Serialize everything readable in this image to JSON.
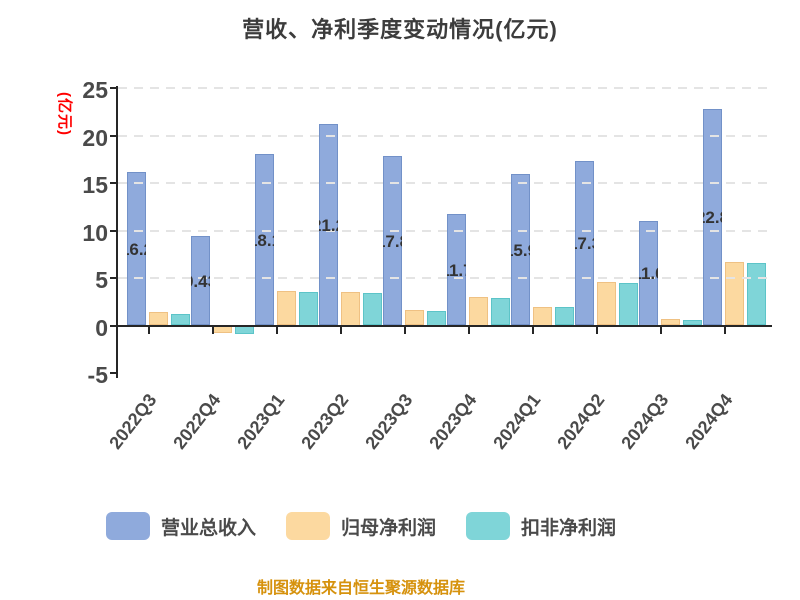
{
  "title": "营收、净利季度变动情况(亿元)",
  "footer": {
    "source_text": "制图数据来自恒生聚源数据库"
  },
  "colors": {
    "revenue_bar": "#8FAADC",
    "revenue_bar_border": "#7291C8",
    "net_profit_bar": "#FCD9A0",
    "net_profit_bar_border": "#EFC183",
    "non_recurring_bar": "#7FD5D8",
    "non_recurring_bar_border": "#5CC4C8",
    "axis": "#262626",
    "gridline": "#E4E4E4",
    "tick_text": "#4A4A4A",
    "title_text": "#3C3C3C",
    "unit_label_text": "#FF0000",
    "bar_label_text": "#333333",
    "footer_text": "#D6920D"
  },
  "chart_data": {
    "type": "bar",
    "title": "营收、净利季度变动情况(亿元)",
    "categories": [
      "2022Q3",
      "2022Q4",
      "2023Q1",
      "2023Q2",
      "2023Q3",
      "2023Q4",
      "2024Q1",
      "2024Q2",
      "2024Q3",
      "2024Q4"
    ],
    "series": [
      {
        "name": "营业总收入",
        "color": "#8FAADC",
        "values": [
          16.2,
          9.43,
          18.1,
          21.2,
          17.8,
          11.7,
          15.9,
          17.3,
          11.0,
          22.8
        ],
        "labels": [
          "16.2",
          "9.43",
          "18.1",
          "21.2",
          "17.8",
          "11.7",
          "15.9",
          "17.3",
          "11.0",
          "22.8"
        ]
      },
      {
        "name": "归母净利润",
        "color": "#FCD9A0",
        "values": [
          1.4,
          -0.8,
          3.6,
          3.5,
          1.6,
          3.0,
          2.0,
          4.6,
          0.7,
          6.7
        ]
      },
      {
        "name": "扣非净利润",
        "color": "#7FD5D8",
        "values": [
          1.2,
          -0.9,
          3.5,
          3.4,
          1.5,
          2.9,
          1.9,
          4.5,
          0.6,
          6.6
        ]
      }
    ],
    "ylabel": "(亿元)",
    "ylim": [
      -5,
      25
    ],
    "y_ticks": [
      "25",
      "20",
      "15",
      "10",
      "5",
      "0",
      "-5"
    ],
    "grid": "horizontal-dashed",
    "legend_position": "bottom"
  }
}
